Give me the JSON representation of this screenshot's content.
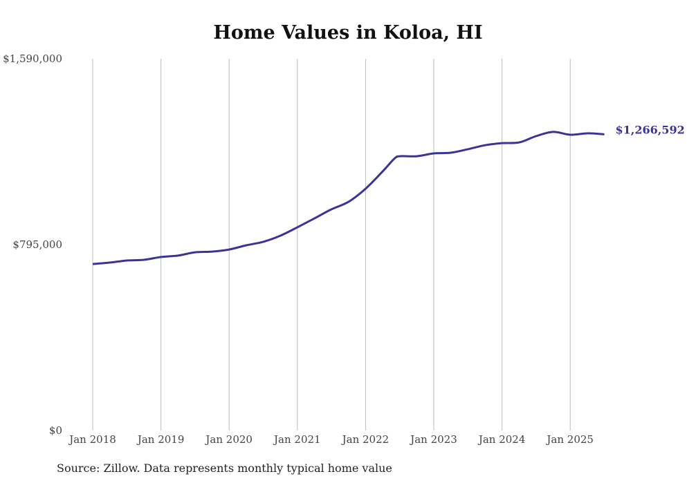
{
  "chart_data": {
    "type": "line",
    "title": "Home Values in Koloa, HI",
    "source": "Source: Zillow. Data represents monthly typical home value",
    "xlabel": "",
    "ylabel": "",
    "ylim": [
      0,
      1590000
    ],
    "y_ticks": [
      "$0",
      "$795,000",
      "$1,590,000"
    ],
    "y_tick_values": [
      0,
      795000,
      1590000
    ],
    "x_ticks": [
      "Jan 2018",
      "Jan 2019",
      "Jan 2020",
      "Jan 2021",
      "Jan 2022",
      "Jan 2023",
      "Jan 2024",
      "Jan 2025"
    ],
    "grid": "vertical",
    "line_color": "#3b3398",
    "end_label": "$1,266,592",
    "series": [
      {
        "name": "Typical home value",
        "x_months_since_jan_2018": [
          0,
          3,
          6,
          9,
          12,
          15,
          18,
          21,
          24,
          27,
          30,
          33,
          36,
          39,
          42,
          45,
          48,
          51,
          53,
          54,
          57,
          60,
          63,
          66,
          69,
          72,
          75,
          78,
          81,
          84,
          87,
          90
        ],
        "values": [
          712000,
          718000,
          727000,
          730000,
          742000,
          748000,
          762000,
          765000,
          774000,
          792000,
          807000,
          833000,
          869000,
          907000,
          946000,
          978000,
          1034000,
          1108000,
          1161000,
          1173000,
          1173000,
          1185000,
          1188000,
          1203000,
          1220000,
          1229000,
          1232000,
          1259000,
          1277000,
          1265000,
          1271000,
          1266592
        ]
      }
    ]
  }
}
